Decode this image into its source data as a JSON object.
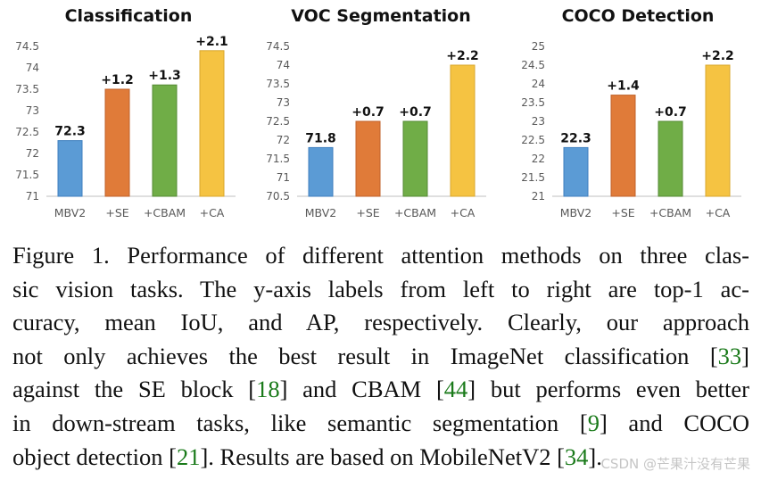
{
  "chart_data": [
    {
      "type": "bar",
      "title": "Classification",
      "categories": [
        "MBV2",
        "+SE",
        "+CBAM",
        "+CA"
      ],
      "values": [
        72.3,
        73.5,
        73.6,
        74.4
      ],
      "data_labels": [
        "72.3",
        "+1.2",
        "+1.3",
        "+2.1"
      ],
      "ylim": [
        71,
        74.5
      ],
      "yticks": [
        "71",
        "71.5",
        "72",
        "72.5",
        "73",
        "73.5",
        "74",
        "74.5"
      ],
      "grid": false
    },
    {
      "type": "bar",
      "title": "VOC Segmentation",
      "categories": [
        "MBV2",
        "+SE",
        "+CBAM",
        "+CA"
      ],
      "values": [
        71.8,
        72.5,
        72.5,
        74.0
      ],
      "data_labels": [
        "71.8",
        "+0.7",
        "+0.7",
        "+2.2"
      ],
      "ylim": [
        70.5,
        74.5
      ],
      "yticks": [
        "70.5",
        "71",
        "71.5",
        "72",
        "72.5",
        "73",
        "73.5",
        "74",
        "74.5"
      ],
      "grid": false
    },
    {
      "type": "bar",
      "title": "COCO Detection",
      "categories": [
        "MBV2",
        "+SE",
        "+CBAM",
        "+CA"
      ],
      "values": [
        22.3,
        23.7,
        23.0,
        24.5
      ],
      "data_labels": [
        "22.3",
        "+1.4",
        "+0.7",
        "+2.2"
      ],
      "ylim": [
        21,
        25
      ],
      "yticks": [
        "21",
        "21.5",
        "22",
        "22.5",
        "23",
        "23.5",
        "24",
        "24.5",
        "25"
      ],
      "grid": false
    }
  ],
  "colors": {
    "bars": [
      "#5b9bd5",
      "#e07b39",
      "#70ad47",
      "#f5c342"
    ],
    "bar_edge": [
      "#3f7fbf",
      "#c0622a",
      "#558a34",
      "#d9a72c"
    ]
  },
  "caption": {
    "lines": [
      [
        {
          "t": "Figure 1. Performance of different attention methods on three clas-"
        }
      ],
      [
        {
          "t": "sic vision tasks.  The y-axis labels from left to right are top-1 ac-"
        }
      ],
      [
        {
          "t": "curacy, mean IoU, and AP, respectively.  Clearly, our approach"
        }
      ],
      [
        {
          "t": "not only achieves the best result in ImageNet classification ["
        },
        {
          "t": "33",
          "ref": true
        },
        {
          "t": "]"
        }
      ],
      [
        {
          "t": "against the SE block ["
        },
        {
          "t": "18",
          "ref": true
        },
        {
          "t": "] and CBAM ["
        },
        {
          "t": "44",
          "ref": true
        },
        {
          "t": "] but performs even better"
        }
      ],
      [
        {
          "t": "in down-stream tasks, like semantic segmentation ["
        },
        {
          "t": "9",
          "ref": true
        },
        {
          "t": "] and COCO"
        }
      ],
      [
        {
          "t": "object detection ["
        },
        {
          "t": "21",
          "ref": true
        },
        {
          "t": "]. Results are based on MobileNetV2 ["
        },
        {
          "t": "34",
          "ref": true
        },
        {
          "t": "]."
        }
      ]
    ]
  },
  "watermark": "CSDN @芒果汁没有芒果"
}
